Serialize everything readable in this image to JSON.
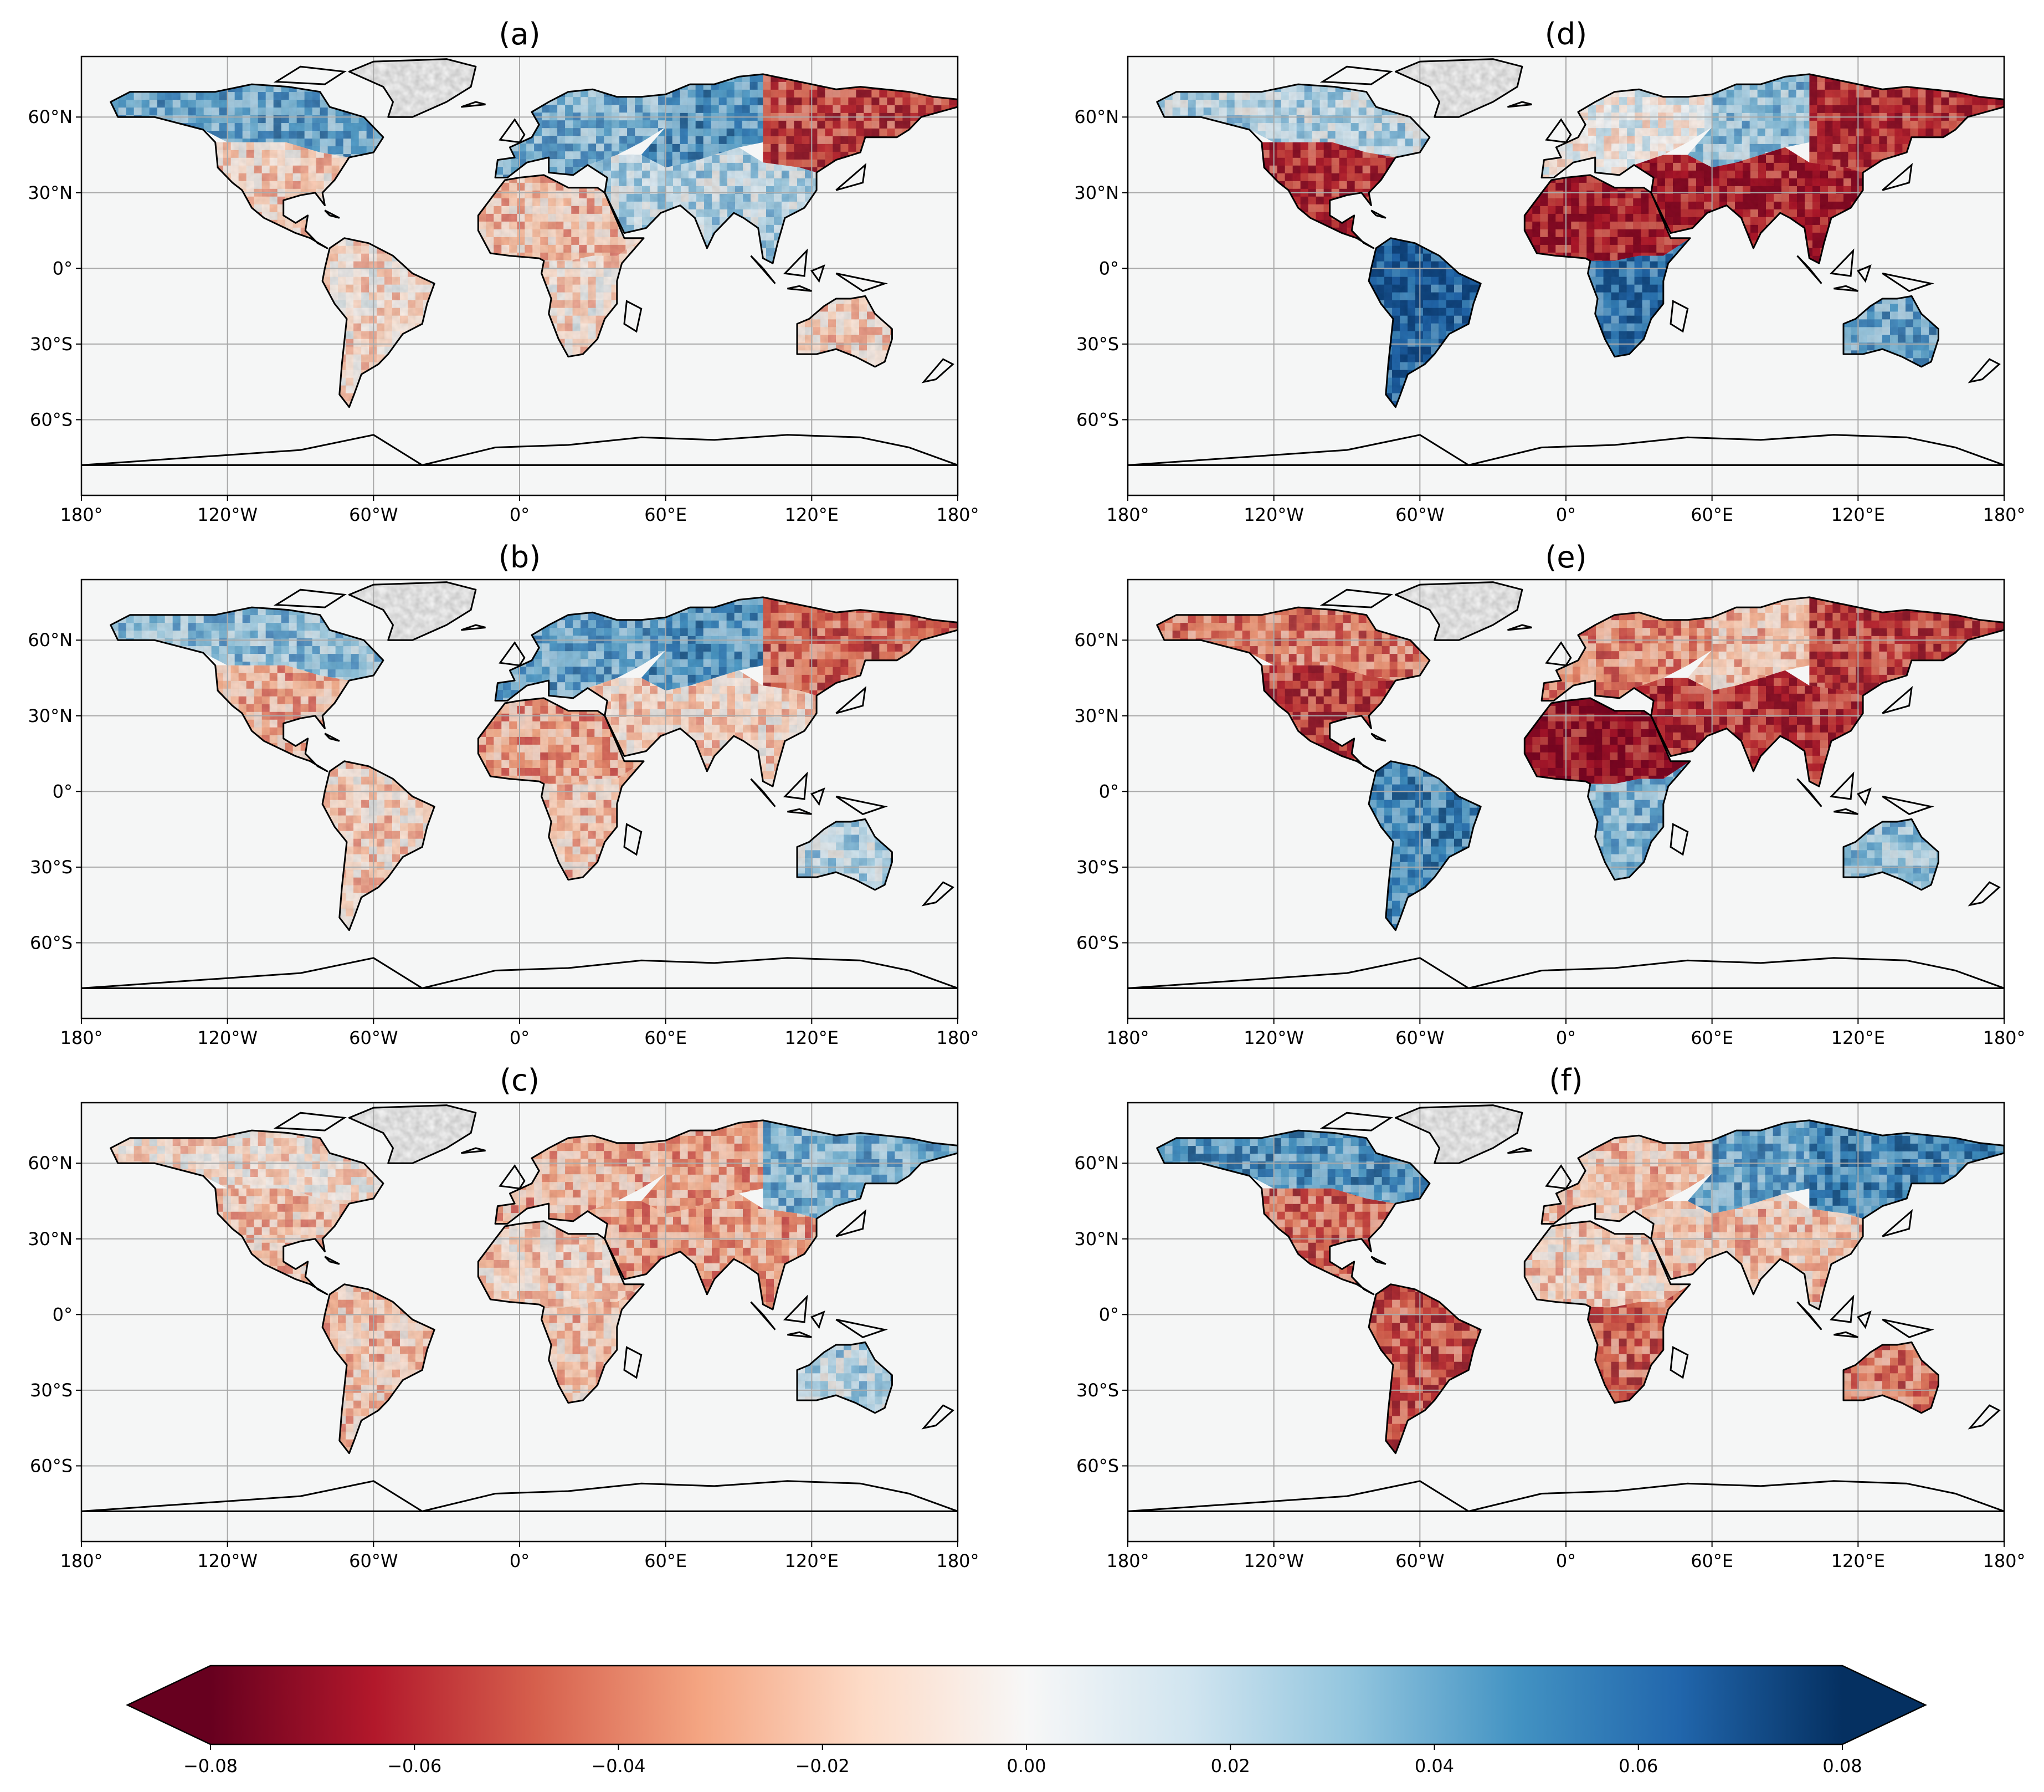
{
  "figure": {
    "panels": [
      {
        "id": "a",
        "title": "(a)",
        "field": {
          "NA_north": 0.04,
          "NA_south": -0.015,
          "SA": -0.01,
          "EU": 0.035,
          "SIB_W": 0.045,
          "SIB_E": -0.055,
          "AF_N": -0.02,
          "AF_S": -0.01,
          "ASIA_S": 0.02,
          "AUS": -0.015,
          "GRN": 0.0
        }
      },
      {
        "id": "b",
        "title": "(b)",
        "field": {
          "NA_north": 0.03,
          "NA_south": -0.025,
          "SA": -0.015,
          "EU": 0.04,
          "SIB_W": 0.045,
          "SIB_E": -0.045,
          "AF_N": -0.03,
          "AF_S": -0.02,
          "ASIA_S": -0.015,
          "AUS": 0.02,
          "GRN": 0.0
        }
      },
      {
        "id": "c",
        "title": "(c)",
        "field": {
          "NA_north": -0.01,
          "NA_south": -0.02,
          "SA": -0.02,
          "EU": -0.025,
          "SIB_W": -0.03,
          "SIB_E": 0.035,
          "AF_N": -0.015,
          "AF_S": -0.02,
          "ASIA_S": -0.03,
          "AUS": 0.02,
          "GRN": 0.0
        }
      },
      {
        "id": "d",
        "title": "(d)",
        "field": {
          "NA_north": 0.02,
          "NA_south": -0.06,
          "SA": 0.065,
          "EU": 0.0,
          "SIB_W": 0.03,
          "SIB_E": -0.06,
          "AF_N": -0.065,
          "AF_S": 0.06,
          "ASIA_S": -0.065,
          "AUS": 0.04,
          "GRN": 0.0
        }
      },
      {
        "id": "e",
        "title": "(e)",
        "field": {
          "NA_north": -0.04,
          "NA_south": -0.055,
          "SA": 0.05,
          "EU": -0.035,
          "SIB_W": -0.02,
          "SIB_E": -0.055,
          "AF_N": -0.07,
          "AF_S": 0.035,
          "ASIA_S": -0.06,
          "AUS": 0.03,
          "GRN": 0.0
        }
      },
      {
        "id": "f",
        "title": "(f)",
        "field": {
          "NA_north": 0.045,
          "NA_south": -0.045,
          "SA": -0.05,
          "EU": -0.02,
          "SIB_W": 0.04,
          "SIB_E": 0.05,
          "AF_N": -0.015,
          "AF_S": -0.045,
          "ASIA_S": -0.02,
          "AUS": -0.04,
          "GRN": 0.0
        }
      }
    ],
    "x_ticks": [
      "180°",
      "120°W",
      "60°W",
      "0°",
      "60°E",
      "120°E",
      "180°"
    ],
    "y_ticks": [
      "60°N",
      "30°N",
      "0°",
      "30°S",
      "60°S"
    ],
    "colorbar": {
      "ticks": [
        "−0.08",
        "−0.06",
        "−0.04",
        "−0.02",
        "0.00",
        "0.02",
        "0.04",
        "0.06",
        "0.08"
      ],
      "range": [
        -0.08,
        0.08
      ],
      "extend": "both",
      "colormap": "RdBu",
      "colors": [
        "#67001f",
        "#b2182b",
        "#d6604d",
        "#f4a582",
        "#fddbc7",
        "#f7f7f7",
        "#d1e5f0",
        "#92c5de",
        "#4393c3",
        "#2166ac",
        "#053061"
      ]
    },
    "ocean_color": "#f5f6f6",
    "grid_color": "#a9a9a9",
    "coast_color": "#000000"
  }
}
